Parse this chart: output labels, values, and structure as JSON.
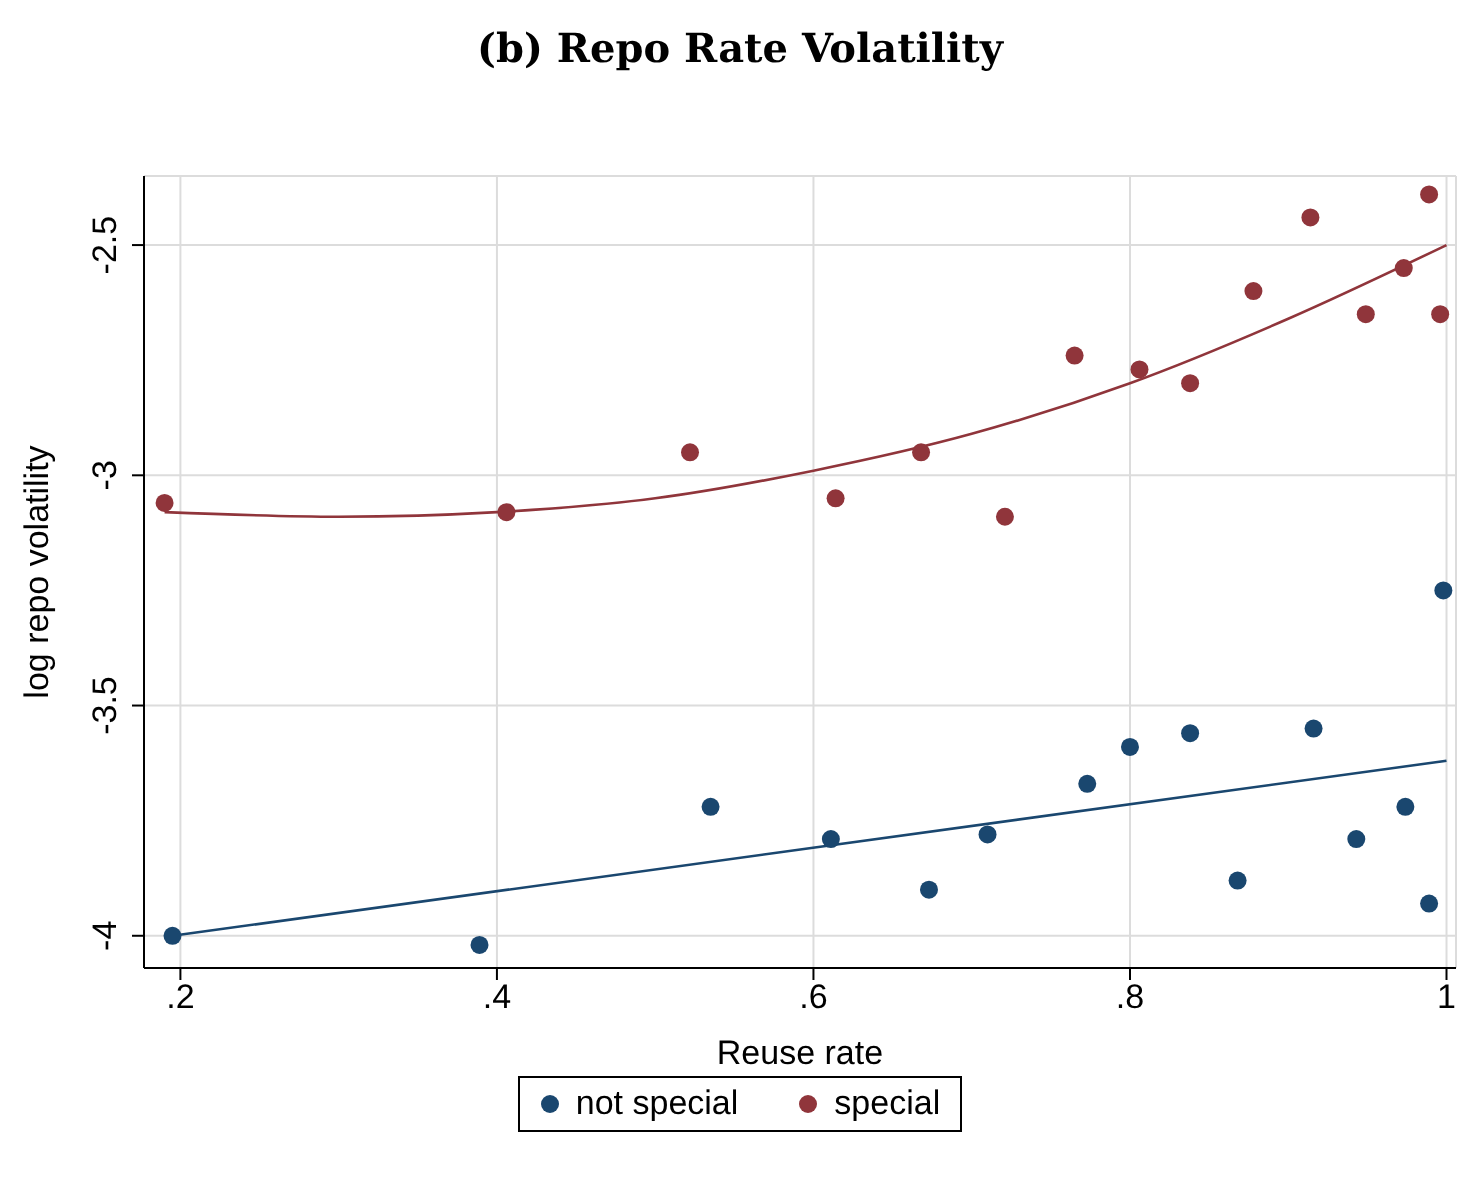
{
  "chart_data": {
    "type": "scatter",
    "title": "(b) Repo Rate Volatility",
    "xlabel": "Reuse rate",
    "ylabel": "log repo volatility",
    "xlim": [
      0.177,
      1.006
    ],
    "ylim": [
      -4.07,
      -2.35
    ],
    "xticks": [
      {
        "value": 0.2,
        "label": ".2"
      },
      {
        "value": 0.4,
        "label": ".4"
      },
      {
        "value": 0.6,
        "label": ".6"
      },
      {
        "value": 0.8,
        "label": ".8"
      },
      1
    ],
    "yticks": [
      -4,
      -3.5,
      -3,
      -2.5
    ],
    "grid": true,
    "legend": "bottom",
    "series": [
      {
        "name": "not special",
        "marker": "circle",
        "color": "#1a476f",
        "x": [
          0.195,
          0.389,
          0.535,
          0.611,
          0.673,
          0.71,
          0.773,
          0.8,
          0.838,
          0.868,
          0.916,
          0.943,
          0.974,
          0.989,
          0.998
        ],
        "values": [
          -4.0,
          -4.02,
          -3.72,
          -3.79,
          -3.9,
          -3.78,
          -3.67,
          -3.59,
          -3.56,
          -3.88,
          -3.55,
          -3.79,
          -3.72,
          -3.93,
          -3.25
        ]
      },
      {
        "name": "special",
        "marker": "circle",
        "color": "#90353b",
        "x": [
          0.19,
          0.406,
          0.522,
          0.614,
          0.668,
          0.721,
          0.765,
          0.806,
          0.838,
          0.878,
          0.914,
          0.949,
          0.973,
          0.989,
          0.996
        ],
        "values": [
          -3.06,
          -3.08,
          -2.95,
          -3.05,
          -2.95,
          -3.09,
          -2.74,
          -2.77,
          -2.8,
          -2.6,
          -2.44,
          -2.65,
          -2.55,
          -2.39,
          -2.65
        ]
      },
      {
        "type": "line",
        "marker": "none",
        "color": "#1a476f",
        "x": [
          0.195,
          1.0
        ],
        "values": [
          -4.0,
          -3.62
        ]
      },
      {
        "type": "line",
        "marker": "none",
        "color": "#90353b",
        "x": [
          0.19,
          0.3,
          0.4,
          0.5,
          0.6,
          0.7,
          0.8,
          0.9,
          1.0
        ],
        "values": [
          -3.08,
          -3.09,
          -3.08,
          -3.05,
          -2.99,
          -2.91,
          -2.8,
          -2.66,
          -2.5
        ]
      }
    ]
  }
}
